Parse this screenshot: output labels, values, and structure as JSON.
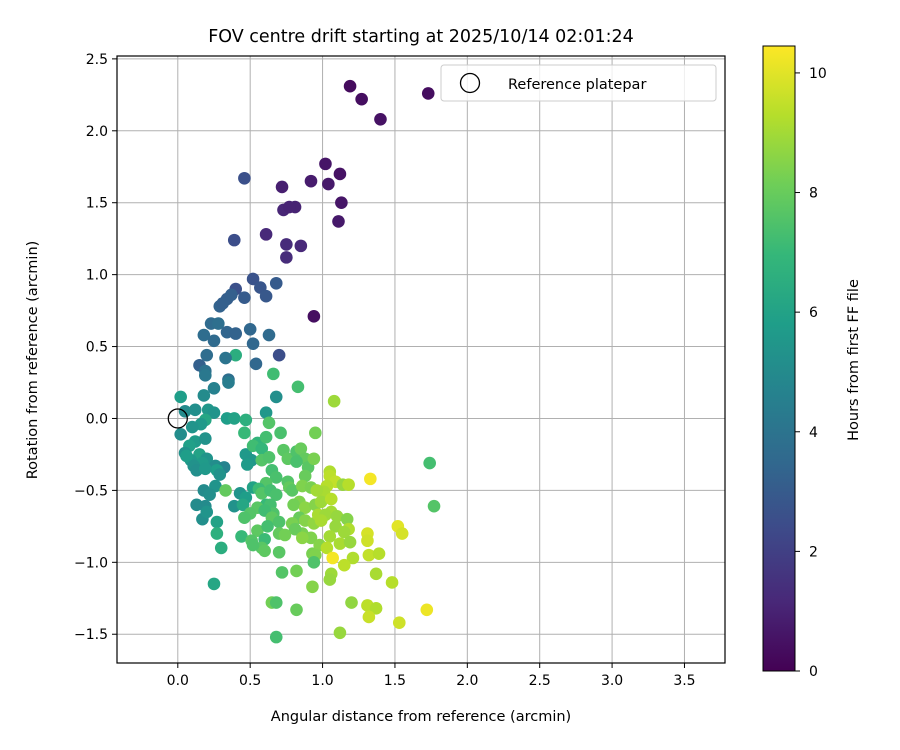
{
  "chart_data": {
    "type": "scatter",
    "title": "FOV centre drift starting at 2025/10/14 02:01:24",
    "xlabel": "Angular distance from reference (arcmin)",
    "ylabel": "Rotation from reference (arcmin)",
    "xlim": [
      -0.42,
      3.78
    ],
    "ylim": [
      -1.7,
      2.52
    ],
    "xticks": [
      0.0,
      0.5,
      1.0,
      1.5,
      2.0,
      2.5,
      3.0,
      3.5
    ],
    "xtick_labels": [
      "0.0",
      "0.5",
      "1.0",
      "1.5",
      "2.0",
      "2.5",
      "3.0",
      "3.5"
    ],
    "yticks": [
      -1.5,
      -1.0,
      -0.5,
      0.0,
      0.5,
      1.0,
      1.5,
      2.0,
      2.5
    ],
    "ytick_labels": [
      "−1.5",
      "−1.0",
      "−0.5",
      "0.0",
      "0.5",
      "1.0",
      "1.5",
      "2.0",
      "2.5"
    ],
    "grid": true,
    "legend": {
      "label": "Reference platepar",
      "position": "top-right"
    },
    "reference_point": {
      "x": 0.0,
      "y": 0.0
    },
    "colorbar": {
      "label": "Hours from first FF file",
      "range": [
        0,
        10.45
      ],
      "ticks": [
        0,
        2,
        4,
        6,
        8,
        10
      ],
      "tick_labels": [
        "0",
        "2",
        "4",
        "6",
        "8",
        "10"
      ],
      "colormap": [
        "#440154",
        "#482878",
        "#3e4989",
        "#31688e",
        "#26828e",
        "#1f9e89",
        "#35b779",
        "#6ece58",
        "#b5de2b",
        "#fde725"
      ]
    },
    "points": [
      [
        1.19,
        2.31,
        0.3
      ],
      [
        1.27,
        2.22,
        0.4
      ],
      [
        1.73,
        2.26,
        0.35
      ],
      [
        1.4,
        2.08,
        0.5
      ],
      [
        1.02,
        1.77,
        0.6
      ],
      [
        1.04,
        1.63,
        0.7
      ],
      [
        1.12,
        1.7,
        0.5
      ],
      [
        0.92,
        1.65,
        0.8
      ],
      [
        0.72,
        1.61,
        0.9
      ],
      [
        1.13,
        1.5,
        0.6
      ],
      [
        0.81,
        1.47,
        1.0
      ],
      [
        0.73,
        1.45,
        1.1
      ],
      [
        0.77,
        1.47,
        1.0
      ],
      [
        1.11,
        1.37,
        0.7
      ],
      [
        0.61,
        1.28,
        1.2
      ],
      [
        0.75,
        1.21,
        1.3
      ],
      [
        0.85,
        1.2,
        1.2
      ],
      [
        0.75,
        1.12,
        1.3
      ],
      [
        0.94,
        0.71,
        0.4
      ],
      [
        0.46,
        1.67,
        2.6
      ],
      [
        0.39,
        1.24,
        2.5
      ],
      [
        0.52,
        0.97,
        2.7
      ],
      [
        0.68,
        0.94,
        3.0
      ],
      [
        0.57,
        0.91,
        2.8
      ],
      [
        0.4,
        0.9,
        2.6
      ],
      [
        0.61,
        0.85,
        2.9
      ],
      [
        0.46,
        0.84,
        3.0
      ],
      [
        0.34,
        0.83,
        3.1
      ],
      [
        0.37,
        0.86,
        3.2
      ],
      [
        0.29,
        0.78,
        3.3
      ],
      [
        0.31,
        0.8,
        3.2
      ],
      [
        0.23,
        0.66,
        3.6
      ],
      [
        0.28,
        0.66,
        3.8
      ],
      [
        0.5,
        0.62,
        3.5
      ],
      [
        0.34,
        0.6,
        3.4
      ],
      [
        0.4,
        0.59,
        3.3
      ],
      [
        0.18,
        0.58,
        3.7
      ],
      [
        0.63,
        0.58,
        3.6
      ],
      [
        0.52,
        0.52,
        3.5
      ],
      [
        0.25,
        0.54,
        3.6
      ],
      [
        0.2,
        0.44,
        3.7
      ],
      [
        0.4,
        0.44,
        6.5
      ],
      [
        0.7,
        0.44,
        2.5
      ],
      [
        0.15,
        0.37,
        3.2
      ],
      [
        0.33,
        0.42,
        4.0
      ],
      [
        0.19,
        0.33,
        3.9
      ],
      [
        0.54,
        0.38,
        3.5
      ],
      [
        0.19,
        0.3,
        4.2
      ],
      [
        0.35,
        0.27,
        3.8
      ],
      [
        0.35,
        0.25,
        4.4
      ],
      [
        0.25,
        0.21,
        4.6
      ],
      [
        0.18,
        0.16,
        5.0
      ],
      [
        0.68,
        0.15,
        5.2
      ],
      [
        0.02,
        0.15,
        5.8
      ],
      [
        0.05,
        0.05,
        5.0
      ],
      [
        0.12,
        0.06,
        5.2
      ],
      [
        0.21,
        0.06,
        5.5
      ],
      [
        0.25,
        0.04,
        5.4
      ],
      [
        0.61,
        0.04,
        5.5
      ],
      [
        0.34,
        0.0,
        5.8
      ],
      [
        0.39,
        0.0,
        6.0
      ],
      [
        0.19,
        -0.01,
        6.2
      ],
      [
        0.16,
        -0.04,
        5.6
      ],
      [
        0.1,
        -0.06,
        5.4
      ],
      [
        0.02,
        -0.11,
        5.1
      ],
      [
        0.12,
        -0.16,
        5.7
      ],
      [
        0.08,
        -0.19,
        5.9
      ],
      [
        0.19,
        -0.14,
        5.3
      ],
      [
        0.05,
        -0.24,
        5.3
      ],
      [
        0.15,
        -0.25,
        6.0
      ],
      [
        0.09,
        -0.29,
        5.6
      ],
      [
        0.06,
        -0.26,
        5.8
      ],
      [
        0.2,
        -0.28,
        5.4
      ],
      [
        0.17,
        -0.31,
        5.7
      ],
      [
        0.11,
        -0.33,
        5.3
      ],
      [
        0.26,
        -0.33,
        5.1
      ],
      [
        0.32,
        -0.34,
        4.7
      ],
      [
        0.13,
        -0.36,
        5.2
      ],
      [
        0.27,
        -0.36,
        5.8
      ],
      [
        0.19,
        -0.35,
        5.6
      ],
      [
        0.29,
        -0.39,
        5.3
      ],
      [
        0.18,
        -0.5,
        5.0
      ],
      [
        0.26,
        -0.47,
        5.4
      ],
      [
        0.33,
        -0.5,
        7.9
      ],
      [
        0.13,
        -0.6,
        5.0
      ],
      [
        0.22,
        -0.53,
        5.2
      ],
      [
        0.19,
        -0.61,
        5.0
      ],
      [
        0.17,
        -0.7,
        5.2
      ],
      [
        0.2,
        -0.65,
        5.4
      ],
      [
        0.39,
        -0.61,
        5.3
      ],
      [
        0.27,
        -0.72,
        6.0
      ],
      [
        0.27,
        -0.8,
        6.6
      ],
      [
        0.3,
        -0.9,
        6.5
      ],
      [
        0.25,
        -1.15,
        6.2
      ],
      [
        0.47,
        -0.25,
        5.6
      ],
      [
        0.51,
        -0.29,
        5.5
      ],
      [
        0.48,
        -0.32,
        5.7
      ],
      [
        0.43,
        -0.52,
        5.4
      ],
      [
        0.47,
        -0.55,
        5.8
      ],
      [
        0.52,
        -0.48,
        6.0
      ],
      [
        0.45,
        -0.6,
        6.2
      ],
      [
        0.47,
        -0.01,
        6.6
      ],
      [
        0.46,
        -0.1,
        7.0
      ],
      [
        0.55,
        -0.17,
        6.8
      ],
      [
        0.52,
        -0.19,
        7.2
      ],
      [
        0.58,
        -0.21,
        6.9
      ],
      [
        0.61,
        -0.13,
        7.3
      ],
      [
        0.66,
        0.31,
        7.2
      ],
      [
        0.63,
        -0.03,
        7.6
      ],
      [
        0.71,
        -0.1,
        7.4
      ],
      [
        0.83,
        0.22,
        7.3
      ],
      [
        0.65,
        -0.36,
        7.3
      ],
      [
        0.58,
        -0.29,
        7.6
      ],
      [
        0.63,
        -0.27,
        7.5
      ],
      [
        0.73,
        -0.22,
        7.7
      ],
      [
        0.76,
        -0.28,
        7.8
      ],
      [
        0.68,
        -0.41,
        7.4
      ],
      [
        0.61,
        -0.45,
        7.6
      ],
      [
        0.56,
        -0.49,
        7.1
      ],
      [
        0.58,
        -0.52,
        7.6
      ],
      [
        0.64,
        -0.5,
        7.3
      ],
      [
        0.68,
        -0.53,
        7.4
      ],
      [
        0.61,
        -0.6,
        7.0
      ],
      [
        0.55,
        -0.62,
        7.7
      ],
      [
        0.64,
        -0.6,
        7.3
      ],
      [
        0.66,
        -0.66,
        7.5
      ],
      [
        0.6,
        -0.64,
        7.2
      ],
      [
        0.5,
        -0.66,
        7.6
      ],
      [
        0.46,
        -0.69,
        7.5
      ],
      [
        0.65,
        -0.69,
        7.8
      ],
      [
        0.7,
        -0.72,
        7.5
      ],
      [
        0.44,
        -0.82,
        7.0
      ],
      [
        0.55,
        -0.78,
        7.8
      ],
      [
        0.62,
        -0.75,
        7.3
      ],
      [
        0.6,
        -0.84,
        7.1
      ],
      [
        0.51,
        -0.85,
        7.6
      ],
      [
        0.58,
        -0.9,
        7.7
      ],
      [
        0.52,
        -0.88,
        7.5
      ],
      [
        0.7,
        -0.8,
        7.9
      ],
      [
        0.6,
        -0.92,
        7.8
      ],
      [
        0.7,
        -0.93,
        7.7
      ],
      [
        0.72,
        -1.07,
        7.6
      ],
      [
        0.65,
        -1.28,
        8.2
      ],
      [
        0.68,
        -1.28,
        7.5
      ],
      [
        0.68,
        -1.52,
        7.3
      ],
      [
        0.82,
        -0.23,
        7.5
      ],
      [
        0.85,
        -0.21,
        8.0
      ],
      [
        0.88,
        -0.28,
        7.9
      ],
      [
        0.82,
        -0.3,
        7.4
      ],
      [
        0.9,
        -0.34,
        7.7
      ],
      [
        0.95,
        -0.1,
        8.2
      ],
      [
        0.94,
        -0.28,
        8.3
      ],
      [
        0.76,
        -0.44,
        7.6
      ],
      [
        0.77,
        -0.48,
        7.9
      ],
      [
        0.88,
        -0.4,
        8.0
      ],
      [
        0.79,
        -0.5,
        7.7
      ],
      [
        0.86,
        -0.47,
        8.4
      ],
      [
        0.92,
        -0.48,
        8.3
      ],
      [
        0.84,
        -0.58,
        8.4
      ],
      [
        0.8,
        -0.6,
        8.2
      ],
      [
        0.88,
        -0.62,
        8.6
      ],
      [
        0.95,
        -0.6,
        8.5
      ],
      [
        0.84,
        -0.69,
        8.0
      ],
      [
        0.79,
        -0.73,
        8.3
      ],
      [
        0.88,
        -0.71,
        8.5
      ],
      [
        0.94,
        -0.73,
        8.7
      ],
      [
        0.86,
        -0.8,
        8.3
      ],
      [
        0.92,
        -0.83,
        8.4
      ],
      [
        0.81,
        -0.77,
        8.0
      ],
      [
        0.74,
        -0.81,
        8.2
      ],
      [
        0.86,
        -0.83,
        8.6
      ],
      [
        0.93,
        -0.94,
        8.3
      ],
      [
        0.98,
        -0.88,
        8.5
      ],
      [
        0.95,
        -0.95,
        8.4
      ],
      [
        0.94,
        -1.0,
        7.5
      ],
      [
        0.82,
        -1.06,
        8.2
      ],
      [
        0.93,
        -1.17,
        8.5
      ],
      [
        0.82,
        -1.33,
        8.0
      ],
      [
        1.08,
        0.12,
        8.9
      ],
      [
        1.05,
        -0.37,
        9.2
      ],
      [
        1.05,
        -0.4,
        9.4
      ],
      [
        1.09,
        -0.44,
        9.5
      ],
      [
        1.03,
        -0.47,
        9.3
      ],
      [
        1.01,
        -0.51,
        9.1
      ],
      [
        0.96,
        -0.5,
        9.0
      ],
      [
        0.99,
        -0.58,
        8.9
      ],
      [
        1.06,
        -0.56,
        9.3
      ],
      [
        1.14,
        -0.46,
        8.8
      ],
      [
        1.18,
        -0.46,
        9.3
      ],
      [
        1.06,
        -0.65,
        9.0
      ],
      [
        0.97,
        -0.67,
        9.1
      ],
      [
        1.02,
        -0.67,
        8.9
      ],
      [
        1.1,
        -0.68,
        8.8
      ],
      [
        0.99,
        -0.71,
        9.1
      ],
      [
        1.09,
        -0.75,
        8.8
      ],
      [
        1.17,
        -0.7,
        8.5
      ],
      [
        1.18,
        -0.77,
        9.2
      ],
      [
        1.15,
        -0.79,
        8.9
      ],
      [
        1.05,
        -0.82,
        9.0
      ],
      [
        1.12,
        -0.87,
        9.1
      ],
      [
        1.03,
        -0.9,
        9.3
      ],
      [
        1.07,
        -0.97,
        10.3
      ],
      [
        1.19,
        -0.86,
        8.8
      ],
      [
        1.31,
        -0.8,
        9.8
      ],
      [
        1.31,
        -0.85,
        9.7
      ],
      [
        1.32,
        -0.95,
        9.5
      ],
      [
        1.39,
        -0.94,
        9.3
      ],
      [
        1.21,
        -0.97,
        9.2
      ],
      [
        1.15,
        -1.02,
        9.4
      ],
      [
        1.06,
        -1.08,
        8.9
      ],
      [
        1.05,
        -1.12,
        8.8
      ],
      [
        1.37,
        -1.08,
        9.1
      ],
      [
        1.48,
        -1.14,
        9.3
      ],
      [
        1.2,
        -1.28,
        8.7
      ],
      [
        1.31,
        -1.3,
        9.4
      ],
      [
        1.37,
        -1.32,
        9.2
      ],
      [
        1.32,
        -1.38,
        9.6
      ],
      [
        1.12,
        -1.49,
        8.8
      ],
      [
        1.53,
        -1.42,
        9.7
      ],
      [
        1.72,
        -1.33,
        10.2
      ],
      [
        1.52,
        -0.75,
        10.0
      ],
      [
        1.55,
        -0.8,
        9.8
      ],
      [
        1.33,
        -0.42,
        10.3
      ],
      [
        1.74,
        -0.31,
        7.3
      ],
      [
        1.77,
        -0.61,
        7.6
      ]
    ]
  }
}
